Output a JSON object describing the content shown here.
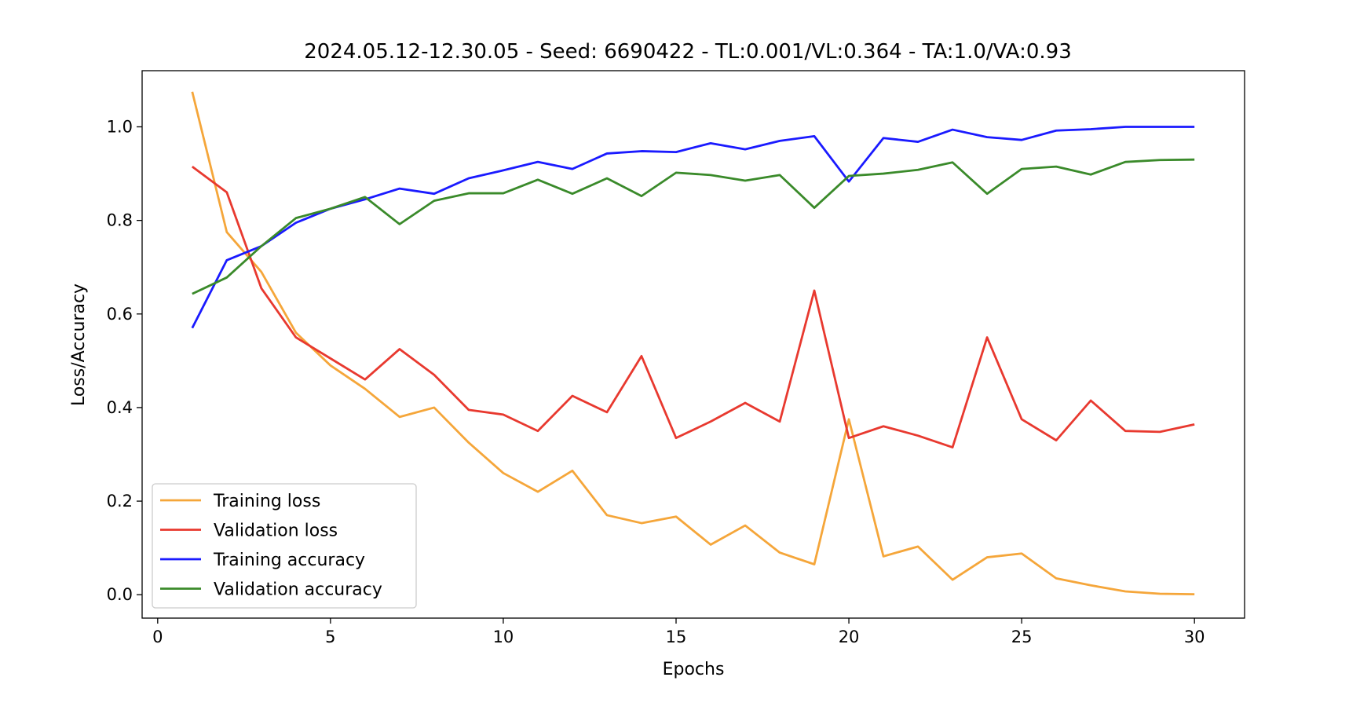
{
  "chart_data": {
    "type": "line",
    "title": "2024.05.12-12.30.05 - Seed: 6690422 - TL:0.001/VL:0.364 - TA:1.0/VA:0.93",
    "xlabel": "Epochs",
    "ylabel": "Loss/Accuracy",
    "xlim": [
      -0.45,
      31.45
    ],
    "ylim": [
      -0.05,
      1.12
    ],
    "xticks": [
      0,
      5,
      10,
      15,
      20,
      25,
      30
    ],
    "xtick_labels": [
      "0",
      "5",
      "10",
      "15",
      "20",
      "25",
      "30"
    ],
    "yticks": [
      0.0,
      0.2,
      0.4,
      0.6,
      0.8,
      1.0
    ],
    "ytick_labels": [
      "0.0",
      "0.2",
      "0.4",
      "0.6",
      "0.8",
      "1.0"
    ],
    "grid": false,
    "legend_position": "lower-left",
    "x": [
      1,
      2,
      3,
      4,
      5,
      6,
      7,
      8,
      9,
      10,
      11,
      12,
      13,
      14,
      15,
      16,
      17,
      18,
      19,
      20,
      21,
      22,
      23,
      24,
      25,
      26,
      27,
      28,
      29,
      30
    ],
    "series": [
      {
        "name": "Training loss",
        "color": "#f5a63a",
        "values": [
          1.075,
          0.775,
          0.69,
          0.56,
          0.49,
          0.44,
          0.38,
          0.4,
          0.325,
          0.26,
          0.22,
          0.265,
          0.17,
          0.153,
          0.167,
          0.107,
          0.148,
          0.09,
          0.065,
          0.375,
          0.082,
          0.103,
          0.032,
          0.08,
          0.088,
          0.035,
          0.02,
          0.007,
          0.002,
          0.001
        ]
      },
      {
        "name": "Validation loss",
        "color": "#e8392f",
        "values": [
          0.915,
          0.86,
          0.655,
          0.55,
          0.505,
          0.46,
          0.525,
          0.47,
          0.395,
          0.385,
          0.35,
          0.425,
          0.39,
          0.51,
          0.335,
          0.37,
          0.41,
          0.37,
          0.65,
          0.335,
          0.36,
          0.34,
          0.315,
          0.55,
          0.375,
          0.33,
          0.415,
          0.35,
          0.348,
          0.364
        ]
      },
      {
        "name": "Training accuracy",
        "color": "#1a1aff",
        "values": [
          0.57,
          0.715,
          0.745,
          0.795,
          0.825,
          0.845,
          0.868,
          0.857,
          0.89,
          0.907,
          0.925,
          0.91,
          0.943,
          0.948,
          0.946,
          0.965,
          0.952,
          0.97,
          0.98,
          0.883,
          0.976,
          0.968,
          0.994,
          0.978,
          0.972,
          0.992,
          0.995,
          1.0,
          1.0,
          1.0
        ]
      },
      {
        "name": "Validation accuracy",
        "color": "#3a8a2a",
        "values": [
          0.643,
          0.678,
          0.745,
          0.805,
          0.825,
          0.85,
          0.792,
          0.842,
          0.858,
          0.858,
          0.887,
          0.857,
          0.89,
          0.852,
          0.902,
          0.897,
          0.885,
          0.897,
          0.827,
          0.895,
          0.9,
          0.908,
          0.924,
          0.857,
          0.91,
          0.915,
          0.898,
          0.925,
          0.929,
          0.93
        ]
      }
    ]
  }
}
